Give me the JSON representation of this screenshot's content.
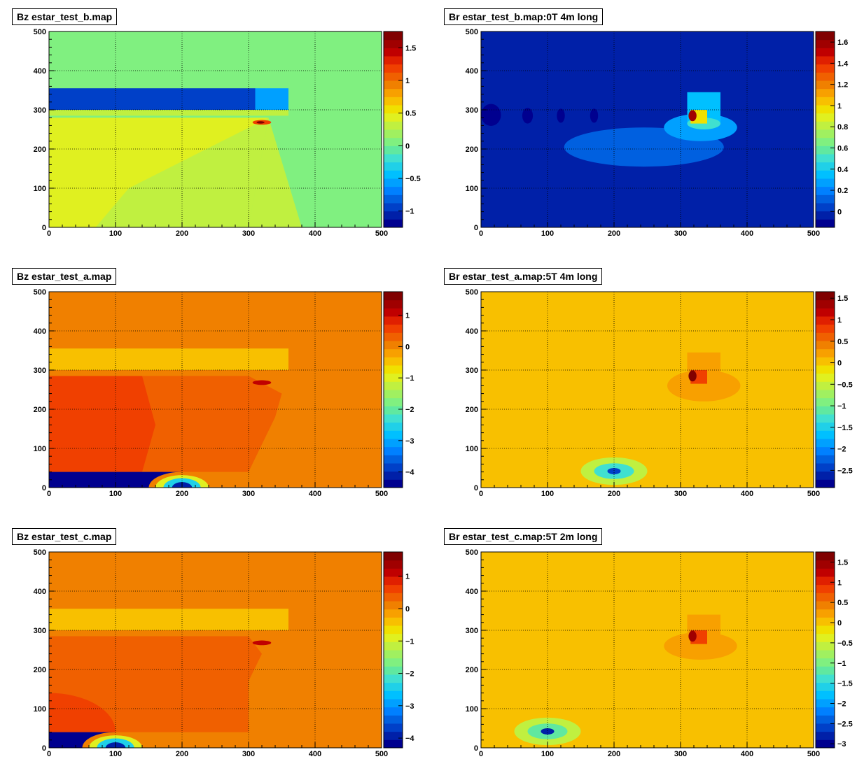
{
  "chart_data": [
    {
      "type": "heatmap",
      "title": "Bz estar_test_b.map",
      "xlim": [
        0,
        500
      ],
      "ylim": [
        0,
        500
      ],
      "x_ticks": [
        0,
        100,
        200,
        300,
        400,
        500
      ],
      "y_ticks": [
        0,
        100,
        200,
        300,
        400,
        500
      ],
      "grid": true,
      "colorbar": {
        "zmin": -1.25,
        "zmax": 1.75,
        "ticks": [
          1.5,
          1,
          0.5,
          0,
          -0.5,
          -1
        ]
      },
      "background_value": 0.1,
      "regions": [
        {
          "kind": "rect",
          "x": [
            0,
            500
          ],
          "y": [
            0,
            500
          ],
          "value": 0.1
        },
        {
          "kind": "poly",
          "points": [
            [
              0,
              0
            ],
            [
              300,
              0
            ],
            [
              330,
              280
            ],
            [
              0,
              280
            ]
          ],
          "value": 0.45
        },
        {
          "kind": "poly",
          "points": [
            [
              70,
              0
            ],
            [
              300,
              0
            ],
            [
              330,
              280
            ],
            [
              120,
              100
            ]
          ],
          "value": 0.3
        },
        {
          "kind": "poly",
          "points": [
            [
              300,
              0
            ],
            [
              380,
              0
            ],
            [
              330,
              280
            ]
          ],
          "value": 0.3
        },
        {
          "kind": "rect",
          "x": [
            0,
            310
          ],
          "y": [
            300,
            355
          ],
          "value": -1.0
        },
        {
          "kind": "rect",
          "x": [
            310,
            360
          ],
          "y": [
            300,
            355
          ],
          "value": -0.6
        },
        {
          "kind": "rect",
          "x": [
            0,
            360
          ],
          "y": [
            285,
            300
          ],
          "value": 0.3
        },
        {
          "kind": "ellipse",
          "cx": 320,
          "cy": 268,
          "rx": 14,
          "ry": 6,
          "value": 1.2
        },
        {
          "kind": "ellipse",
          "cx": 318,
          "cy": 268,
          "rx": 6,
          "ry": 3,
          "value": 1.7
        }
      ]
    },
    {
      "type": "heatmap",
      "title": "Br estar_test_b.map:0T 4m long",
      "xlim": [
        0,
        500
      ],
      "ylim": [
        0,
        500
      ],
      "x_ticks": [
        0,
        100,
        200,
        300,
        400,
        500
      ],
      "y_ticks": [
        0,
        100,
        200,
        300,
        400,
        500
      ],
      "grid": true,
      "colorbar": {
        "zmin": -0.15,
        "zmax": 1.7,
        "ticks": [
          1.6,
          1.4,
          1.2,
          1,
          0.8,
          0.6,
          0.4,
          0.2,
          0
        ]
      },
      "background_value": 0.0,
      "regions": [
        {
          "kind": "ellipse",
          "cx": 245,
          "cy": 205,
          "rx": 120,
          "ry": 50,
          "value": 0.1
        },
        {
          "kind": "ellipse",
          "cx": 330,
          "cy": 255,
          "rx": 55,
          "ry": 35,
          "value": 0.25
        },
        {
          "kind": "rect",
          "x": [
            310,
            360
          ],
          "y": [
            265,
            345
          ],
          "value": 0.35
        },
        {
          "kind": "ellipse",
          "cx": 335,
          "cy": 265,
          "rx": 25,
          "ry": 15,
          "value": 0.5
        },
        {
          "kind": "rect",
          "x": [
            315,
            340
          ],
          "y": [
            265,
            300
          ],
          "value": 1.0
        },
        {
          "kind": "ellipse",
          "cx": 318,
          "cy": 285,
          "rx": 6,
          "ry": 14,
          "value": 1.6
        },
        {
          "kind": "ellipse",
          "cx": 15,
          "cy": 287,
          "rx": 15,
          "ry": 28,
          "value": -0.1
        },
        {
          "kind": "ellipse",
          "cx": 70,
          "cy": 285,
          "rx": 8,
          "ry": 20,
          "value": -0.1
        },
        {
          "kind": "ellipse",
          "cx": 120,
          "cy": 285,
          "rx": 6,
          "ry": 18,
          "value": -0.1
        },
        {
          "kind": "ellipse",
          "cx": 170,
          "cy": 285,
          "rx": 6,
          "ry": 18,
          "value": -0.1
        }
      ]
    },
    {
      "type": "heatmap",
      "title": "Bz estar_test_a.map",
      "xlim": [
        0,
        500
      ],
      "ylim": [
        0,
        500
      ],
      "x_ticks": [
        0,
        100,
        200,
        300,
        400,
        500
      ],
      "y_ticks": [
        0,
        100,
        200,
        300,
        400,
        500
      ],
      "grid": true,
      "colorbar": {
        "zmin": -4.5,
        "zmax": 1.75,
        "ticks": [
          1,
          0,
          -1,
          -2,
          -3,
          -4
        ]
      },
      "background_value": 0.1,
      "regions": [
        {
          "kind": "poly",
          "points": [
            [
              0,
              40
            ],
            [
              300,
              40
            ],
            [
              340,
              180
            ],
            [
              350,
              240
            ],
            [
              300,
              285
            ],
            [
              0,
              285
            ]
          ],
          "value": 0.35
        },
        {
          "kind": "poly",
          "points": [
            [
              0,
              40
            ],
            [
              140,
              40
            ],
            [
              160,
              160
            ],
            [
              140,
              285
            ],
            [
              0,
              285
            ]
          ],
          "value": 0.6
        },
        {
          "kind": "rect",
          "x": [
            0,
            360
          ],
          "y": [
            300,
            355
          ],
          "value": -0.5
        },
        {
          "kind": "rect",
          "x": [
            0,
            340
          ],
          "y": [
            285,
            300
          ],
          "value": 0.1
        },
        {
          "kind": "ellipse",
          "cx": 320,
          "cy": 268,
          "rx": 14,
          "ry": 6,
          "value": 1.0
        },
        {
          "kind": "rect",
          "x": [
            0,
            200
          ],
          "y": [
            0,
            40
          ],
          "value": -4.3
        },
        {
          "kind": "ellipse",
          "cx": 200,
          "cy": 0,
          "rx": 50,
          "ry": 40,
          "value": 0.0
        },
        {
          "kind": "ellipse",
          "cx": 200,
          "cy": 0,
          "rx": 40,
          "ry": 32,
          "value": -1.0
        },
        {
          "kind": "ellipse",
          "cx": 200,
          "cy": 0,
          "rx": 28,
          "ry": 24,
          "value": -2.5
        },
        {
          "kind": "ellipse",
          "cx": 200,
          "cy": 0,
          "rx": 15,
          "ry": 14,
          "value": -4.0
        }
      ]
    },
    {
      "type": "heatmap",
      "title": "Br estar_test_a.map:5T 4m long",
      "xlim": [
        0,
        500
      ],
      "ylim": [
        0,
        500
      ],
      "x_ticks": [
        0,
        100,
        200,
        300,
        400,
        500
      ],
      "y_ticks": [
        0,
        100,
        200,
        300,
        400,
        500
      ],
      "grid": true,
      "colorbar": {
        "zmin": -2.9,
        "zmax": 1.65,
        "ticks": [
          1.5,
          1,
          0.5,
          0,
          -0.5,
          -1,
          -1.5,
          -2,
          -2.5
        ]
      },
      "background_value": -0.05,
      "regions": [
        {
          "kind": "ellipse",
          "cx": 250,
          "cy": 205,
          "rx": 120,
          "ry": 55,
          "value": 0.1
        },
        {
          "kind": "ellipse",
          "cx": 335,
          "cy": 260,
          "rx": 55,
          "ry": 40,
          "value": 0.25
        },
        {
          "kind": "rect",
          "x": [
            310,
            360
          ],
          "y": [
            265,
            345
          ],
          "value": 0.3
        },
        {
          "kind": "rect",
          "x": [
            315,
            340
          ],
          "y": [
            265,
            300
          ],
          "value": 0.8
        },
        {
          "kind": "ellipse",
          "cx": 318,
          "cy": 285,
          "rx": 6,
          "ry": 14,
          "value": 1.5
        },
        {
          "kind": "ellipse",
          "cx": 200,
          "cy": 42,
          "rx": 50,
          "ry": 35,
          "value": -0.5
        },
        {
          "kind": "ellipse",
          "cx": 200,
          "cy": 42,
          "rx": 30,
          "ry": 20,
          "value": -1.2
        },
        {
          "kind": "ellipse",
          "cx": 200,
          "cy": 42,
          "rx": 10,
          "ry": 8,
          "value": -2.5
        }
      ]
    },
    {
      "type": "heatmap",
      "title": "Bz estar_test_c.map",
      "xlim": [
        0,
        500
      ],
      "ylim": [
        0,
        500
      ],
      "x_ticks": [
        0,
        100,
        200,
        300,
        400,
        500
      ],
      "y_ticks": [
        0,
        100,
        200,
        300,
        400,
        500
      ],
      "grid": true,
      "colorbar": {
        "zmin": -4.3,
        "zmax": 1.75,
        "ticks": [
          1,
          0,
          -1,
          -2,
          -3,
          -4
        ]
      },
      "background_value": 0.1,
      "regions": [
        {
          "kind": "poly",
          "points": [
            [
              0,
              40
            ],
            [
              300,
              40
            ],
            [
              300,
              170
            ],
            [
              320,
              240
            ],
            [
              300,
              285
            ],
            [
              0,
              285
            ]
          ],
          "value": 0.35
        },
        {
          "kind": "ellipse",
          "cx": 0,
          "cy": 40,
          "rx": 100,
          "ry": 100,
          "value": 0.6
        },
        {
          "kind": "rect",
          "x": [
            0,
            360
          ],
          "y": [
            300,
            355
          ],
          "value": -0.5
        },
        {
          "kind": "rect",
          "x": [
            0,
            340
          ],
          "y": [
            285,
            300
          ],
          "value": 0.1
        },
        {
          "kind": "ellipse",
          "cx": 320,
          "cy": 268,
          "rx": 14,
          "ry": 6,
          "value": 1.0
        },
        {
          "kind": "rect",
          "x": [
            0,
            100
          ],
          "y": [
            0,
            40
          ],
          "value": -4.1
        },
        {
          "kind": "ellipse",
          "cx": 100,
          "cy": 0,
          "rx": 50,
          "ry": 40,
          "value": 0.0
        },
        {
          "kind": "ellipse",
          "cx": 100,
          "cy": 0,
          "rx": 40,
          "ry": 32,
          "value": -1.0
        },
        {
          "kind": "ellipse",
          "cx": 100,
          "cy": 0,
          "rx": 28,
          "ry": 24,
          "value": -2.5
        },
        {
          "kind": "ellipse",
          "cx": 100,
          "cy": 0,
          "rx": 15,
          "ry": 14,
          "value": -4.0
        }
      ]
    },
    {
      "type": "heatmap",
      "title": "Br estar_test_c.map:5T 2m long",
      "xlim": [
        0,
        500
      ],
      "ylim": [
        0,
        500
      ],
      "x_ticks": [
        0,
        100,
        200,
        300,
        400,
        500
      ],
      "y_ticks": [
        0,
        100,
        200,
        300,
        400,
        500
      ],
      "grid": true,
      "colorbar": {
        "zmin": -3.1,
        "zmax": 1.75,
        "ticks": [
          1.5,
          1,
          0.5,
          0,
          -0.5,
          -1,
          -1.5,
          -2,
          -2.5,
          -3
        ]
      },
      "background_value": -0.05,
      "regions": [
        {
          "kind": "poly",
          "points": [
            [
              395,
              500
            ],
            [
              500,
              500
            ],
            [
              500,
              0
            ],
            [
              260,
              0
            ],
            [
              220,
              100
            ],
            [
              90,
              210
            ],
            [
              60,
              290
            ],
            [
              90,
              340
            ],
            [
              330,
              340
            ],
            [
              380,
              300
            ]
          ],
          "value": 0.1
        },
        {
          "kind": "ellipse",
          "cx": 330,
          "cy": 260,
          "rx": 55,
          "ry": 35,
          "value": 0.25
        },
        {
          "kind": "rect",
          "x": [
            310,
            360
          ],
          "y": [
            265,
            340
          ],
          "value": 0.3
        },
        {
          "kind": "rect",
          "x": [
            315,
            340
          ],
          "y": [
            265,
            300
          ],
          "value": 0.8
        },
        {
          "kind": "ellipse",
          "cx": 318,
          "cy": 285,
          "rx": 6,
          "ry": 14,
          "value": 1.5
        },
        {
          "kind": "ellipse",
          "cx": 100,
          "cy": 42,
          "rx": 50,
          "ry": 35,
          "value": -0.5
        },
        {
          "kind": "ellipse",
          "cx": 100,
          "cy": 42,
          "rx": 30,
          "ry": 20,
          "value": -1.2
        },
        {
          "kind": "ellipse",
          "cx": 100,
          "cy": 42,
          "rx": 10,
          "ry": 8,
          "value": -2.7
        }
      ]
    }
  ]
}
